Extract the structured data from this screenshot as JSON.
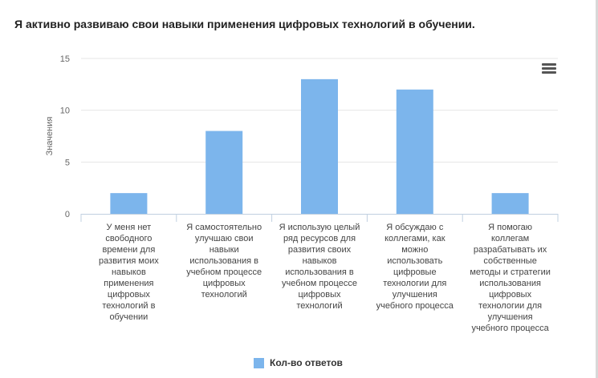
{
  "title": "Я активно развиваю свои навыки применения цифровых технологий в обучении.",
  "menu_icon": "hamburger-menu-icon",
  "chart_data": {
    "type": "bar",
    "ylabel": "Значения",
    "ylim": [
      0,
      15
    ],
    "yticks": [
      0,
      5,
      10,
      15
    ],
    "color": "#7cb5ec",
    "categories": [
      "У меня нет свободного времени для развития моих навыков применения цифровых технологий в обучении",
      "Я самостоятельно улучшаю свои навыки использования в учебном процессе цифровых технологий",
      "Я использую целый ряд ресурсов для развития своих навыков использования в учебном процессе цифровых технологий",
      "Я обсуждаю с коллегами, как можно использовать цифровые технологии для улучшения учебного процесса",
      "Я помогаю коллегам разрабатывать их собственные методы и стратегии использования цифровых технологии для улучшения учебного процесса"
    ],
    "category_lines": [
      [
        "У меня нет",
        "свободного",
        "времени для",
        "развития моих",
        "навыков",
        "применения",
        "цифровых",
        "технологий в",
        "обучении"
      ],
      [
        "Я самостоятельно",
        "улучшаю свои",
        "навыки",
        "использования в",
        "учебном процессе",
        "цифровых",
        "технологий"
      ],
      [
        "Я использую целый",
        "ряд ресурсов для",
        "развития своих",
        "навыков",
        "использования в",
        "учебном процессе",
        "цифровых",
        "технологий"
      ],
      [
        "Я обсуждаю с",
        "коллегами, как",
        "можно",
        "использовать",
        "цифровые",
        "технологии для",
        "улучшения",
        "учебного процесса"
      ],
      [
        "Я помогаю",
        "коллегам",
        "разрабатывать их",
        "собственные",
        "методы и стратегии",
        "использования",
        "цифровых",
        "технологии для",
        "улучшения",
        "учебного процесса"
      ]
    ],
    "series": [
      {
        "name": "Кол-во ответов",
        "values": [
          2,
          8,
          13,
          12,
          2
        ]
      }
    ],
    "legend": "bottom-center",
    "grid": true
  }
}
